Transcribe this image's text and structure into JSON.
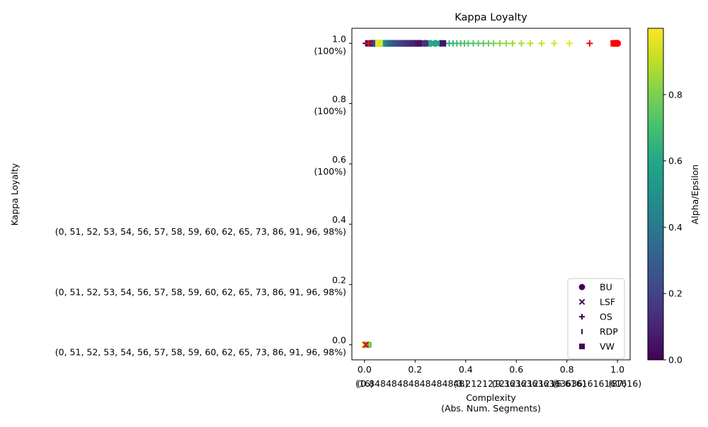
{
  "chart_data": {
    "type": "scatter",
    "title": "Kappa Loyalty",
    "xlabel": [
      "Complexity",
      "(Abs. Num. Segments)"
    ],
    "ylabel": "Kappa Loyalty",
    "xlim": [
      -0.05,
      1.05
    ],
    "ylim": [
      -0.05,
      1.05
    ],
    "x_ticks": [
      0.0,
      0.2,
      0.4,
      0.6,
      0.8,
      1.0
    ],
    "x_tick_labels": [
      "0.0",
      "0.2",
      "0.4",
      "0.6",
      "0.8",
      "1.0"
    ],
    "x_secondary_labels": [
      {
        "x": 0.0,
        "text": "(16)"
      },
      {
        "x": 0.19,
        "text": "(0.84848484848484848)"
      },
      {
        "x": 0.56,
        "text": "(3.2121212121212121)"
      },
      {
        "x": 0.69,
        "text": "(9.36363636363636)"
      },
      {
        "x": 0.92,
        "text": "(6.6161616161616)"
      },
      {
        "x": 1.0,
        "text": "(87)"
      }
    ],
    "y_ticks": [
      0.0,
      0.2,
      0.4,
      0.6,
      0.8,
      1.0
    ],
    "y_tick_labels": [
      "0.0",
      "0.2",
      "0.4",
      "0.6",
      "0.8",
      "1.0"
    ],
    "y_secondary_labels": [
      "(0, 51, 52, 53, 54, 56, 57, 58, 59, 60, 62, 65, 73, 86, 91, 96, 98%)",
      "(0, 51, 52, 53, 54, 56, 57, 58, 59, 60, 62, 65, 73, 86, 91, 96, 98%)",
      "(0, 51, 52, 53, 54, 56, 57, 58, 59, 60, 62, 65, 73, 86, 91, 96, 98%)",
      "(100%)",
      "(100%)",
      "(100%)"
    ],
    "colorbar": {
      "label": "Alpha/Epsilon",
      "colormap": "viridis",
      "range": [
        0.0,
        1.0
      ],
      "ticks": [
        0.0,
        0.2,
        0.4,
        0.6,
        0.8
      ],
      "tick_labels": [
        "0.0",
        "0.2",
        "0.4",
        "0.6",
        "0.8"
      ]
    },
    "legend_position": "lower-right",
    "legend": [
      {
        "name": "BU",
        "marker": "circle"
      },
      {
        "name": "LSF",
        "marker": "x"
      },
      {
        "name": "OS",
        "marker": "plus"
      },
      {
        "name": "RDP",
        "marker": "vline"
      },
      {
        "name": "VW",
        "marker": "square"
      }
    ],
    "highlight_color": "#ff0000",
    "series": [
      {
        "name": "BU",
        "marker": "circle",
        "points": [
          {
            "x": 0.05,
            "y": 1.0,
            "c": 0.97
          },
          {
            "x": 0.055,
            "y": 1.0,
            "c": 0.93
          },
          {
            "x": 0.06,
            "y": 1.0,
            "c": 0.9
          },
          {
            "x": 0.065,
            "y": 1.0,
            "c": 0.78
          },
          {
            "x": 0.07,
            "y": 1.0,
            "c": 0.7
          },
          {
            "x": 0.075,
            "y": 1.0,
            "c": 0.6
          },
          {
            "x": 0.08,
            "y": 1.0,
            "c": 0.55
          },
          {
            "x": 0.085,
            "y": 1.0,
            "c": 0.5
          },
          {
            "x": 0.09,
            "y": 1.0,
            "c": 0.45
          },
          {
            "x": 0.095,
            "y": 1.0,
            "c": 0.4
          },
          {
            "x": 0.1,
            "y": 1.0,
            "c": 0.35
          },
          {
            "x": 0.11,
            "y": 1.0,
            "c": 0.3
          },
          {
            "x": 0.12,
            "y": 1.0,
            "c": 0.27
          },
          {
            "x": 0.13,
            "y": 1.0,
            "c": 0.24
          },
          {
            "x": 0.14,
            "y": 1.0,
            "c": 0.21
          },
          {
            "x": 0.15,
            "y": 1.0,
            "c": 0.19
          },
          {
            "x": 0.16,
            "y": 1.0,
            "c": 0.17
          },
          {
            "x": 0.17,
            "y": 1.0,
            "c": 0.15
          },
          {
            "x": 0.18,
            "y": 1.0,
            "c": 0.13
          },
          {
            "x": 0.19,
            "y": 1.0,
            "c": 0.11
          },
          {
            "x": 0.2,
            "y": 1.0,
            "c": 0.09
          },
          {
            "x": 0.21,
            "y": 1.0,
            "c": 0.07
          },
          {
            "x": 0.22,
            "y": 1.0,
            "c": 0.05
          },
          {
            "x": 0.24,
            "y": 1.0,
            "c": 0.12
          },
          {
            "x": 0.26,
            "y": 1.0,
            "c": 0.62
          },
          {
            "x": 0.28,
            "y": 1.0,
            "c": 0.6
          },
          {
            "x": 0.3,
            "y": 1.0,
            "c": 0.58
          },
          {
            "x": 0.025,
            "y": 1.0,
            "c": 0.55
          },
          {
            "x": 0.03,
            "y": 1.0,
            "c": 0.05
          },
          {
            "x": 0.035,
            "y": 1.0,
            "c": 0.15
          },
          {
            "x": 0.04,
            "y": 1.0,
            "c": 0.35
          },
          {
            "x": 0.045,
            "y": 1.0,
            "c": 0.85
          },
          {
            "x": 0.99,
            "y": 1.0,
            "red": true
          },
          {
            "x": 0.995,
            "y": 1.0,
            "red": true
          },
          {
            "x": 1.0,
            "y": 1.0,
            "red": true
          }
        ]
      },
      {
        "name": "LSF",
        "marker": "x",
        "points": [
          {
            "x": 0.0,
            "y": 0.0,
            "c": 0.98
          },
          {
            "x": 0.005,
            "y": 0.0,
            "c": 0.9
          },
          {
            "x": 0.01,
            "y": 0.0,
            "c": 0.7
          },
          {
            "x": 0.005,
            "y": 0.0,
            "red": true
          }
        ]
      },
      {
        "name": "OS",
        "marker": "plus",
        "points": [
          {
            "x": 0.005,
            "y": 1.0,
            "c": 0.0
          },
          {
            "x": 0.01,
            "y": 1.0,
            "c": 0.02
          },
          {
            "x": 0.02,
            "y": 1.0,
            "c": 0.08
          },
          {
            "x": 0.32,
            "y": 1.0,
            "c": 0.62
          },
          {
            "x": 0.335,
            "y": 1.0,
            "c": 0.64
          },
          {
            "x": 0.35,
            "y": 1.0,
            "c": 0.66
          },
          {
            "x": 0.365,
            "y": 1.0,
            "c": 0.68
          },
          {
            "x": 0.38,
            "y": 1.0,
            "c": 0.7
          },
          {
            "x": 0.395,
            "y": 1.0,
            "c": 0.71
          },
          {
            "x": 0.41,
            "y": 1.0,
            "c": 0.72
          },
          {
            "x": 0.43,
            "y": 1.0,
            "c": 0.73
          },
          {
            "x": 0.45,
            "y": 1.0,
            "c": 0.74
          },
          {
            "x": 0.47,
            "y": 1.0,
            "c": 0.76
          },
          {
            "x": 0.49,
            "y": 1.0,
            "c": 0.78
          },
          {
            "x": 0.51,
            "y": 1.0,
            "c": 0.8
          },
          {
            "x": 0.535,
            "y": 1.0,
            "c": 0.82
          },
          {
            "x": 0.56,
            "y": 1.0,
            "c": 0.84
          },
          {
            "x": 0.585,
            "y": 1.0,
            "c": 0.86
          },
          {
            "x": 0.62,
            "y": 1.0,
            "c": 0.88
          },
          {
            "x": 0.655,
            "y": 1.0,
            "c": 0.9
          },
          {
            "x": 0.7,
            "y": 1.0,
            "c": 0.92
          },
          {
            "x": 0.75,
            "y": 1.0,
            "c": 0.94
          },
          {
            "x": 0.81,
            "y": 1.0,
            "c": 0.96
          },
          {
            "x": 0.89,
            "y": 1.0,
            "red": true
          },
          {
            "x": 0.015,
            "y": 1.0,
            "red": true
          }
        ]
      },
      {
        "name": "RDP",
        "marker": "vline",
        "points": [
          {
            "x": 0.005,
            "y": 0.0,
            "c": 0.45
          },
          {
            "x": 0.01,
            "y": 0.0,
            "c": 0.6
          },
          {
            "x": 0.015,
            "y": 0.0,
            "c": 0.75
          },
          {
            "x": 0.02,
            "y": 0.0,
            "c": 0.85
          },
          {
            "x": 0.025,
            "y": 0.0,
            "c": 0.72
          }
        ]
      },
      {
        "name": "VW",
        "marker": "square",
        "points": [
          {
            "x": 0.035,
            "y": 1.0,
            "c": 0.1
          },
          {
            "x": 0.045,
            "y": 1.0,
            "c": 0.2
          },
          {
            "x": 0.055,
            "y": 1.0,
            "c": 0.98
          },
          {
            "x": 0.06,
            "y": 1.0,
            "c": 0.95
          },
          {
            "x": 0.24,
            "y": 1.0,
            "c": 0.15
          },
          {
            "x": 0.31,
            "y": 1.0,
            "c": 0.05
          },
          {
            "x": 0.985,
            "y": 1.0,
            "red": true
          },
          {
            "x": 0.99,
            "y": 1.0,
            "red": true
          }
        ]
      }
    ]
  }
}
